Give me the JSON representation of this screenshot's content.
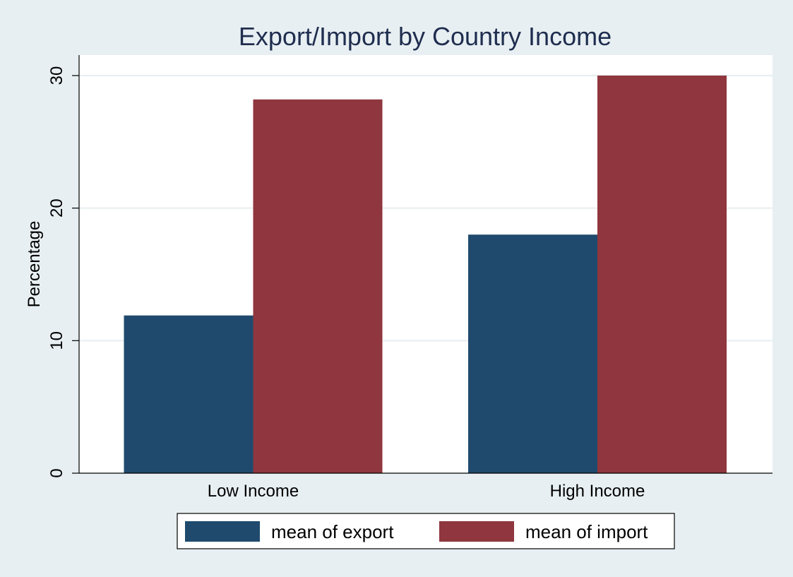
{
  "chart_data": {
    "type": "bar",
    "title": "Export/Import by Country Income",
    "xlabel": "",
    "ylabel": "Percentage",
    "categories": [
      "Low Income",
      "High Income"
    ],
    "series": [
      {
        "name": "mean of export",
        "color": "#1f4a6e",
        "values": [
          11.9,
          18.0
        ]
      },
      {
        "name": "mean of import",
        "color": "#8f363e",
        "values": [
          28.2,
          30.0
        ]
      }
    ],
    "ylim": [
      0,
      30
    ],
    "yticks": [
      "0",
      "10",
      "20",
      "30"
    ],
    "grid": true,
    "legend": "bottom"
  }
}
